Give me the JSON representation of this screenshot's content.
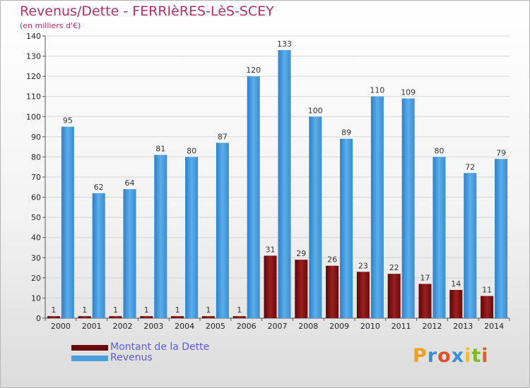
{
  "title": "Revenus/Dette - FERRIèRES-LèS-SCEY",
  "subtitle": "(en milliers d'€)",
  "logo_text": "Proxiti",
  "colors": {
    "title": "#b0306a",
    "dette": "#7a0c0c",
    "revenus": "#4a9fe0",
    "legend_text": "#5a5af0",
    "grid": "#d5d5d5"
  },
  "legend": [
    {
      "label": "Montant de la Dette",
      "color": "#6b0a0a"
    },
    {
      "label": "Revenus",
      "color": "#4a9fe0"
    }
  ],
  "chart_data": {
    "type": "bar",
    "title": "Revenus/Dette - FERRIèRES-LèS-SCEY",
    "subtitle": "(en milliers d'€)",
    "categories": [
      "2000",
      "2001",
      "2002",
      "2003",
      "2004",
      "2005",
      "2006",
      "2007",
      "2008",
      "2009",
      "2010",
      "2011",
      "2012",
      "2013",
      "2014"
    ],
    "series": [
      {
        "name": "Montant de la Dette",
        "values": [
          1,
          1,
          1,
          1,
          1,
          1,
          1,
          31,
          29,
          26,
          23,
          22,
          17,
          14,
          11
        ]
      },
      {
        "name": "Revenus",
        "values": [
          95,
          62,
          64,
          81,
          80,
          87,
          120,
          133,
          100,
          89,
          110,
          109,
          80,
          72,
          79
        ]
      }
    ],
    "ylim": [
      0,
      140
    ],
    "yticks": [
      0,
      10,
      20,
      30,
      40,
      50,
      60,
      70,
      80,
      90,
      100,
      110,
      120,
      130,
      140
    ],
    "grid": true,
    "legend_position": "bottom-left"
  }
}
